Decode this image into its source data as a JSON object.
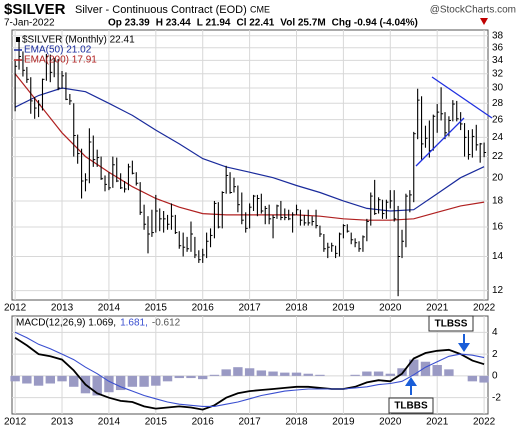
{
  "header": {
    "symbol": "$SILVER",
    "name": "Silver - Continuous Contract (EOD)",
    "exchange": "CME",
    "copyright": "@StockCharts.com",
    "date": "7-Jan-2022",
    "quote": [
      "Op 23.39",
      "H 23.44",
      "L 21.94",
      "Cl 22.41",
      "Vol 25.7M"
    ],
    "change": "Chg -0.94 (-4.04%)"
  },
  "chart_data": [
    {
      "type": "ohlc",
      "ylog": true,
      "ylim": [
        11.5,
        39
      ],
      "yticks": [
        12,
        14,
        16,
        18,
        20,
        22,
        24,
        26,
        28,
        30,
        32,
        34,
        36,
        38
      ],
      "grid": true,
      "xlim": [
        -0.8,
        121
      ],
      "xticks": [
        {
          "value": 0,
          "label": "2012"
        },
        {
          "value": 12,
          "label": "2013"
        },
        {
          "value": 24,
          "label": "2014"
        },
        {
          "value": 36,
          "label": "2015"
        },
        {
          "value": 48,
          "label": "2016"
        },
        {
          "value": 60,
          "label": "2017"
        },
        {
          "value": 72,
          "label": "2018"
        },
        {
          "value": 84,
          "label": "2019"
        },
        {
          "value": 96,
          "label": "2020"
        },
        {
          "value": 108,
          "label": "2021"
        },
        {
          "value": 120,
          "label": "2022"
        }
      ],
      "categories": [
        null,
        null,
        null,
        null,
        null,
        null,
        null,
        null,
        null,
        null,
        null,
        null,
        null,
        null,
        null,
        null,
        null,
        null,
        null,
        null,
        null,
        null,
        null,
        null,
        null,
        null,
        null,
        null,
        null,
        null,
        null,
        null,
        null,
        null,
        null,
        null,
        null,
        null,
        null,
        null,
        null,
        null,
        null,
        null,
        null,
        null,
        null,
        null,
        null,
        null,
        null,
        null,
        null,
        null,
        null,
        null,
        null,
        null,
        null,
        null,
        null,
        null,
        null,
        null,
        null,
        null,
        null,
        null,
        null,
        null,
        null,
        null,
        null,
        null,
        null,
        null,
        null,
        null,
        null,
        null,
        null,
        null,
        null,
        null,
        null,
        null,
        null,
        null,
        null,
        null,
        null,
        null,
        null,
        null,
        null,
        null,
        null,
        null,
        null,
        null,
        null,
        null,
        null,
        null,
        null,
        null,
        null,
        null,
        null,
        null,
        null,
        null,
        null,
        null,
        null,
        null,
        null,
        null,
        null,
        null,
        null
      ],
      "price": {
        "name": "$SILVER (Monthly) 22.41",
        "color": "#000000",
        "high": [
          33.9,
          37.5,
          35.4,
          33.0,
          31.5,
          28.8,
          28.4,
          31.3,
          35.0,
          34.9,
          34.4,
          34.2,
          32.4,
          32.2,
          29.2,
          28.0,
          24.3,
          22.8,
          20.4,
          25.0,
          24.2,
          22.7,
          22.0,
          20.2,
          20.5,
          22.0,
          21.9,
          20.4,
          19.7,
          21.3,
          21.6,
          20.5,
          19.6,
          17.7,
          16.8,
          17.3,
          18.5,
          17.4,
          17.2,
          16.9,
          17.8,
          16.9,
          15.7,
          15.6,
          15.3,
          16.4,
          15.3,
          14.4,
          14.5,
          15.6,
          15.9,
          18.0,
          17.9,
          18.8,
          21.1,
          20.5,
          20.0,
          19.3,
          18.7,
          17.1,
          17.8,
          18.5,
          18.5,
          18.6,
          17.6,
          17.7,
          16.9,
          17.7,
          18.0,
          17.4,
          17.3,
          17.1,
          17.7,
          17.3,
          16.9,
          17.3,
          16.8,
          17.3,
          16.1,
          15.5,
          14.9,
          14.9,
          14.7,
          15.6,
          16.2,
          16.2,
          15.6,
          15.2,
          15.0,
          15.4,
          16.6,
          18.7,
          19.8,
          18.3,
          18.1,
          18.1,
          18.9,
          18.9,
          17.6,
          15.8,
          18.6,
          18.9,
          24.6,
          29.9,
          28.9,
          25.3,
          25.9,
          26.6,
          27.9,
          30.1,
          26.9,
          26.4,
          28.4,
          28.3,
          26.9,
          25.6,
          24.8,
          24.9,
          25.4,
          23.4,
          23.44
        ],
        "low": [
          27.0,
          32.6,
          31.6,
          30.7,
          26.7,
          26.1,
          26.3,
          27.1,
          31.0,
          30.8,
          31.5,
          29.7,
          29.9,
          28.4,
          27.8,
          22.0,
          21.3,
          18.2,
          18.8,
          19.5,
          21.0,
          21.0,
          19.8,
          18.8,
          18.9,
          19.1,
          19.6,
          19.0,
          18.7,
          18.9,
          20.3,
          19.3,
          16.9,
          15.8,
          14.2,
          15.3,
          15.6,
          15.7,
          15.6,
          15.8,
          15.8,
          15.5,
          14.5,
          14.0,
          14.3,
          14.3,
          13.9,
          13.6,
          13.6,
          13.9,
          14.6,
          15.2,
          15.9,
          15.9,
          18.6,
          18.6,
          18.7,
          17.1,
          16.2,
          15.6,
          15.9,
          17.2,
          16.8,
          17.0,
          16.2,
          16.2,
          15.2,
          16.6,
          16.5,
          16.5,
          16.5,
          15.6,
          16.9,
          16.1,
          16.1,
          16.1,
          16.1,
          15.9,
          15.3,
          14.3,
          13.9,
          14.3,
          13.9,
          14.0,
          15.2,
          15.6,
          14.8,
          14.6,
          14.3,
          14.3,
          15.0,
          16.1,
          16.9,
          17.0,
          16.6,
          16.6,
          17.4,
          16.4,
          11.7,
          13.9,
          14.6,
          17.1,
          17.9,
          23.8,
          21.7,
          22.9,
          21.9,
          22.6,
          24.5,
          25.9,
          23.8,
          24.1,
          25.8,
          25.8,
          24.8,
          22.0,
          21.7,
          21.9,
          22.6,
          21.4,
          21.94
        ],
        "close": [
          33.1,
          34.6,
          32.5,
          31.2,
          28.3,
          27.4,
          27.8,
          31.2,
          34.6,
          32.2,
          33.9,
          30.0,
          31.7,
          28.5,
          28.3,
          24.2,
          22.3,
          19.7,
          19.8,
          23.5,
          21.7,
          21.9,
          19.9,
          19.4,
          19.1,
          21.2,
          19.7,
          19.1,
          19.0,
          21.0,
          20.4,
          19.5,
          17.1,
          16.2,
          15.5,
          15.6,
          17.2,
          16.6,
          16.6,
          16.2,
          16.8,
          15.6,
          14.7,
          14.6,
          14.5,
          15.5,
          14.1,
          13.8,
          14.1,
          15.0,
          15.4,
          17.8,
          16.0,
          18.7,
          20.2,
          18.7,
          19.2,
          17.7,
          16.5,
          15.9,
          17.5,
          18.4,
          18.2,
          17.2,
          17.4,
          16.6,
          16.7,
          17.6,
          16.7,
          16.7,
          16.6,
          16.9,
          17.3,
          16.5,
          16.3,
          16.3,
          16.4,
          16.1,
          15.5,
          14.5,
          14.6,
          14.7,
          14.2,
          15.5,
          16.1,
          15.7,
          15.1,
          14.9,
          14.5,
          15.3,
          16.4,
          18.4,
          17.0,
          18.1,
          17.0,
          17.9,
          18.0,
          16.6,
          14.0,
          15.0,
          18.4,
          18.5,
          24.4,
          28.4,
          23.3,
          23.9,
          22.6,
          26.4,
          26.9,
          26.7,
          24.5,
          25.9,
          27.9,
          26.1,
          25.5,
          24.0,
          22.2,
          24.1,
          23.2,
          23.3,
          22.41
        ]
      },
      "series": [
        {
          "name": "EMA(50) 21.02",
          "color": "#1a2b9c",
          "x": [
            0,
            6,
            12,
            18,
            24,
            30,
            36,
            42,
            48,
            54,
            60,
            66,
            72,
            78,
            84,
            90,
            96,
            102,
            108,
            114,
            120
          ],
          "values": [
            27.5,
            29.0,
            30.0,
            29.5,
            28.0,
            26.5,
            24.8,
            23.3,
            21.8,
            21.0,
            20.5,
            20.0,
            19.3,
            18.7,
            18.0,
            17.4,
            17.2,
            17.3,
            18.6,
            20.0,
            21.02
          ]
        },
        {
          "name": "EMA(200) 17.91",
          "color": "#b02020",
          "x": [
            0,
            6,
            12,
            18,
            24,
            30,
            36,
            42,
            48,
            54,
            60,
            66,
            72,
            78,
            84,
            90,
            96,
            102,
            108,
            114,
            120
          ],
          "values": [
            32,
            28,
            24.5,
            22,
            20.5,
            19.2,
            18.2,
            17.5,
            17.0,
            16.9,
            16.9,
            16.9,
            16.9,
            16.8,
            16.6,
            16.5,
            16.5,
            16.6,
            17.1,
            17.6,
            17.91
          ]
        }
      ]
    },
    {
      "type": "macd",
      "ylim": [
        -3.5,
        5.5
      ],
      "yticks": [
        4,
        2,
        0,
        -2
      ],
      "grid": true,
      "xlim": [
        -0.8,
        121
      ],
      "xticks": [
        {
          "value": 0,
          "label": "2012"
        },
        {
          "value": 12,
          "label": "2013"
        },
        {
          "value": 24,
          "label": "2014"
        },
        {
          "value": 36,
          "label": "2015"
        },
        {
          "value": 48,
          "label": "2016"
        },
        {
          "value": 60,
          "label": "2017"
        },
        {
          "value": 72,
          "label": "2018"
        },
        {
          "value": 84,
          "label": "2019"
        },
        {
          "value": 96,
          "label": "2020"
        },
        {
          "value": 108,
          "label": "2021"
        },
        {
          "value": 120,
          "label": "2022"
        }
      ],
      "legend": [
        "MACD(12,26,9) 1.069,",
        "1.681,",
        "-0.612"
      ],
      "x": [
        0,
        3,
        6,
        9,
        12,
        15,
        18,
        21,
        24,
        27,
        30,
        33,
        36,
        39,
        42,
        45,
        48,
        51,
        54,
        57,
        60,
        63,
        66,
        69,
        72,
        75,
        78,
        81,
        84,
        87,
        90,
        93,
        96,
        99,
        102,
        105,
        108,
        111,
        114,
        117,
        120
      ],
      "series": [
        {
          "name": "MACD",
          "color": "#000000",
          "values": [
            3.5,
            2.8,
            2.0,
            1.8,
            1.5,
            0.5,
            -0.8,
            -1.6,
            -2.0,
            -2.3,
            -2.4,
            -2.8,
            -3.0,
            -2.9,
            -2.8,
            -2.9,
            -3.1,
            -2.7,
            -2.0,
            -1.6,
            -1.4,
            -1.3,
            -1.2,
            -1.1,
            -1.0,
            -1.0,
            -1.1,
            -1.2,
            -1.2,
            -1.0,
            -0.6,
            -0.4,
            -0.5,
            0.2,
            1.6,
            2.1,
            2.3,
            2.4,
            2.0,
            1.4,
            1.069
          ]
        },
        {
          "name": "Signal",
          "color": "#3a4fd0",
          "values": [
            4.0,
            3.5,
            2.9,
            2.5,
            2.0,
            1.5,
            0.8,
            0.2,
            -0.5,
            -1.0,
            -1.4,
            -1.8,
            -2.1,
            -2.4,
            -2.6,
            -2.7,
            -2.8,
            -2.8,
            -2.6,
            -2.4,
            -2.1,
            -1.8,
            -1.6,
            -1.4,
            -1.3,
            -1.2,
            -1.2,
            -1.2,
            -1.2,
            -1.1,
            -1.0,
            -0.8,
            -0.7,
            -0.5,
            0.1,
            0.8,
            1.3,
            1.8,
            2.0,
            1.9,
            1.681
          ]
        },
        {
          "name": "Histogram",
          "color": "#9a9ac4",
          "bars": true,
          "values": [
            -0.5,
            -0.7,
            -0.9,
            -0.7,
            -0.5,
            -1.0,
            -1.6,
            -1.8,
            -1.5,
            -1.3,
            -1.0,
            -1.0,
            -0.9,
            -0.5,
            -0.2,
            -0.2,
            -0.3,
            0.1,
            0.6,
            0.8,
            0.7,
            0.5,
            0.4,
            0.3,
            0.3,
            0.2,
            0.1,
            0.0,
            0.0,
            0.1,
            0.4,
            0.4,
            0.2,
            0.7,
            1.5,
            1.3,
            1.0,
            0.6,
            0.0,
            -0.5,
            -0.612
          ]
        }
      ],
      "annotations": [
        "TLBSS",
        "TLBBS"
      ]
    }
  ]
}
